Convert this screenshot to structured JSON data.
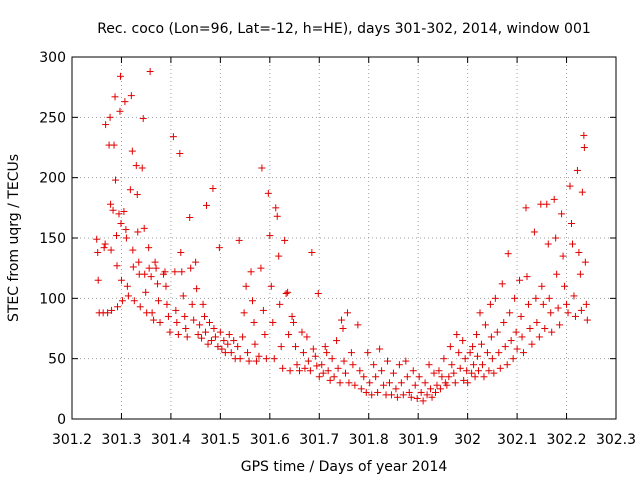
{
  "chart_data": {
    "type": "scatter",
    "title": "Rec. coco (Lon=96, Lat=-12, h=HE), days 301-302, 2014, window 001",
    "xlabel": "GPS time / Days of year 2014",
    "ylabel": "STEC from uqrg / TECUs",
    "xlim": [
      301.2,
      302.3
    ],
    "ylim": [
      0,
      300
    ],
    "grid": true,
    "marker_color": "#e00000",
    "marker": "plus",
    "x_ticks": [
      "301.2",
      "301.3",
      "301.4",
      "301.5",
      "301.6",
      "301.7",
      "301.8",
      "301.9",
      "302",
      "302.1",
      "302.2",
      "302.3"
    ],
    "y_ticks": [
      "0",
      "50",
      "100",
      "150",
      "200",
      "250",
      "300"
    ],
    "points": [
      [
        301.25,
        149
      ],
      [
        301.252,
        138
      ],
      [
        301.253,
        115
      ],
      [
        301.255,
        88
      ],
      [
        301.263,
        88
      ],
      [
        301.265,
        142
      ],
      [
        301.267,
        145
      ],
      [
        301.268,
        244
      ],
      [
        301.272,
        88
      ],
      [
        301.275,
        227
      ],
      [
        301.277,
        250
      ],
      [
        301.278,
        178
      ],
      [
        301.279,
        140
      ],
      [
        301.28,
        90
      ],
      [
        301.283,
        173
      ],
      [
        301.285,
        227
      ],
      [
        301.287,
        267
      ],
      [
        301.288,
        198
      ],
      [
        301.29,
        152
      ],
      [
        301.291,
        127
      ],
      [
        301.292,
        93
      ],
      [
        301.295,
        170
      ],
      [
        301.297,
        255
      ],
      [
        301.298,
        284
      ],
      [
        301.299,
        162
      ],
      [
        301.3,
        115
      ],
      [
        301.302,
        98
      ],
      [
        301.305,
        172
      ],
      [
        301.307,
        263
      ],
      [
        301.309,
        157
      ],
      [
        301.31,
        150
      ],
      [
        301.312,
        110
      ],
      [
        301.314,
        102
      ],
      [
        301.318,
        190
      ],
      [
        301.32,
        268
      ],
      [
        301.322,
        222
      ],
      [
        301.323,
        140
      ],
      [
        301.324,
        126
      ],
      [
        301.326,
        98
      ],
      [
        301.33,
        210
      ],
      [
        301.332,
        186
      ],
      [
        301.333,
        155
      ],
      [
        301.335,
        130
      ],
      [
        301.336,
        120
      ],
      [
        301.338,
        93
      ],
      [
        301.342,
        208
      ],
      [
        301.344,
        249
      ],
      [
        301.346,
        158
      ],
      [
        301.347,
        120
      ],
      [
        301.349,
        105
      ],
      [
        301.351,
        88
      ],
      [
        301.355,
        142
      ],
      [
        301.356,
        125
      ],
      [
        301.358,
        288
      ],
      [
        301.36,
        118
      ],
      [
        301.362,
        88
      ],
      [
        301.365,
        82
      ],
      [
        301.368,
        130
      ],
      [
        301.37,
        125
      ],
      [
        301.373,
        112
      ],
      [
        301.375,
        98
      ],
      [
        301.378,
        80
      ],
      [
        301.385,
        120
      ],
      [
        301.388,
        122
      ],
      [
        301.39,
        110
      ],
      [
        301.392,
        95
      ],
      [
        301.395,
        85
      ],
      [
        301.398,
        72
      ],
      [
        301.405,
        234
      ],
      [
        301.408,
        122
      ],
      [
        301.41,
        90
      ],
      [
        301.412,
        80
      ],
      [
        301.415,
        70
      ],
      [
        301.418,
        220
      ],
      [
        301.42,
        138
      ],
      [
        301.422,
        122
      ],
      [
        301.425,
        102
      ],
      [
        301.428,
        85
      ],
      [
        301.43,
        75
      ],
      [
        301.433,
        68
      ],
      [
        301.438,
        167
      ],
      [
        301.44,
        125
      ],
      [
        301.443,
        95
      ],
      [
        301.446,
        82
      ],
      [
        301.45,
        130
      ],
      [
        301.452,
        108
      ],
      [
        301.455,
        70
      ],
      [
        301.458,
        78
      ],
      [
        301.462,
        67
      ],
      [
        301.465,
        95
      ],
      [
        301.468,
        85
      ],
      [
        301.47,
        72
      ],
      [
        301.472,
        177
      ],
      [
        301.475,
        62
      ],
      [
        301.478,
        80
      ],
      [
        301.482,
        65
      ],
      [
        301.485,
        191
      ],
      [
        301.487,
        75
      ],
      [
        301.49,
        68
      ],
      [
        301.495,
        60
      ],
      [
        301.498,
        142
      ],
      [
        301.5,
        72
      ],
      [
        301.503,
        58
      ],
      [
        301.507,
        65
      ],
      [
        301.51,
        55
      ],
      [
        301.515,
        62
      ],
      [
        301.518,
        70
      ],
      [
        301.522,
        55
      ],
      [
        301.527,
        65
      ],
      [
        301.53,
        50
      ],
      [
        301.535,
        60
      ],
      [
        301.538,
        148
      ],
      [
        301.54,
        50
      ],
      [
        301.545,
        68
      ],
      [
        301.548,
        88
      ],
      [
        301.552,
        110
      ],
      [
        301.555,
        55
      ],
      [
        301.558,
        48
      ],
      [
        301.562,
        122
      ],
      [
        301.565,
        98
      ],
      [
        301.568,
        80
      ],
      [
        301.57,
        62
      ],
      [
        301.573,
        48
      ],
      [
        301.578,
        52
      ],
      [
        301.582,
        125
      ],
      [
        301.584,
        208
      ],
      [
        301.587,
        90
      ],
      [
        301.59,
        70
      ],
      [
        301.593,
        50
      ],
      [
        301.597,
        187
      ],
      [
        301.6,
        152
      ],
      [
        301.603,
        110
      ],
      [
        301.606,
        80
      ],
      [
        301.609,
        50
      ],
      [
        301.612,
        175
      ],
      [
        301.615,
        168
      ],
      [
        301.618,
        135
      ],
      [
        301.62,
        95
      ],
      [
        301.623,
        60
      ],
      [
        301.626,
        42
      ],
      [
        301.63,
        148
      ],
      [
        301.633,
        104
      ],
      [
        301.636,
        105
      ],
      [
        301.638,
        70
      ],
      [
        301.641,
        40
      ],
      [
        301.645,
        85
      ],
      [
        301.648,
        80
      ],
      [
        301.652,
        60
      ],
      [
        301.655,
        45
      ],
      [
        301.66,
        40
      ],
      [
        301.665,
        72
      ],
      [
        301.668,
        55
      ],
      [
        301.671,
        42
      ],
      [
        301.675,
        68
      ],
      [
        301.678,
        48
      ],
      [
        301.682,
        40
      ],
      [
        301.685,
        138
      ],
      [
        301.688,
        58
      ],
      [
        301.692,
        52
      ],
      [
        301.695,
        44
      ],
      [
        301.698,
        104
      ],
      [
        301.7,
        35
      ],
      [
        301.705,
        45
      ],
      [
        301.708,
        38
      ],
      [
        301.712,
        60
      ],
      [
        301.715,
        55
      ],
      [
        301.718,
        40
      ],
      [
        301.722,
        32
      ],
      [
        301.726,
        50
      ],
      [
        301.73,
        35
      ],
      [
        301.735,
        65
      ],
      [
        301.738,
        42
      ],
      [
        301.742,
        30
      ],
      [
        301.745,
        82
      ],
      [
        301.748,
        75
      ],
      [
        301.75,
        48
      ],
      [
        301.753,
        38
      ],
      [
        301.757,
        88
      ],
      [
        301.76,
        30
      ],
      [
        301.765,
        55
      ],
      [
        301.768,
        45
      ],
      [
        301.772,
        28
      ],
      [
        301.778,
        78
      ],
      [
        301.782,
        40
      ],
      [
        301.785,
        25
      ],
      [
        301.79,
        35
      ],
      [
        301.795,
        22
      ],
      [
        301.798,
        55
      ],
      [
        301.802,
        30
      ],
      [
        301.806,
        20
      ],
      [
        301.81,
        45
      ],
      [
        301.814,
        35
      ],
      [
        301.818,
        22
      ],
      [
        301.822,
        58
      ],
      [
        301.826,
        40
      ],
      [
        301.83,
        28
      ],
      [
        301.835,
        20
      ],
      [
        301.838,
        48
      ],
      [
        301.842,
        30
      ],
      [
        301.846,
        20
      ],
      [
        301.85,
        38
      ],
      [
        301.855,
        25
      ],
      [
        301.858,
        18
      ],
      [
        301.862,
        45
      ],
      [
        301.866,
        30
      ],
      [
        301.87,
        20
      ],
      [
        301.875,
        48
      ],
      [
        301.878,
        35
      ],
      [
        301.882,
        22
      ],
      [
        301.886,
        18
      ],
      [
        301.89,
        40
      ],
      [
        301.894,
        28
      ],
      [
        301.898,
        17
      ],
      [
        301.902,
        35
      ],
      [
        301.906,
        22
      ],
      [
        301.91,
        15
      ],
      [
        301.914,
        30
      ],
      [
        301.918,
        20
      ],
      [
        301.922,
        45
      ],
      [
        301.925,
        25
      ],
      [
        301.928,
        18
      ],
      [
        301.932,
        38
      ],
      [
        301.935,
        22
      ],
      [
        301.938,
        28
      ],
      [
        301.942,
        40
      ],
      [
        301.945,
        25
      ],
      [
        301.948,
        35
      ],
      [
        301.952,
        50
      ],
      [
        301.955,
        30
      ],
      [
        301.958,
        28
      ],
      [
        301.962,
        35
      ],
      [
        301.965,
        60
      ],
      [
        301.968,
        45
      ],
      [
        301.972,
        38
      ],
      [
        301.975,
        30
      ],
      [
        301.978,
        70
      ],
      [
        301.982,
        55
      ],
      [
        301.985,
        42
      ],
      [
        301.99,
        65
      ],
      [
        301.992,
        32
      ],
      [
        301.995,
        50
      ],
      [
        301.998,
        40
      ],
      [
        302.0,
        30
      ],
      [
        302.005,
        55
      ],
      [
        302.008,
        38
      ],
      [
        302.01,
        60
      ],
      [
        302.012,
        45
      ],
      [
        302.015,
        35
      ],
      [
        302.018,
        70
      ],
      [
        302.02,
        52
      ],
      [
        302.022,
        40
      ],
      [
        302.025,
        88
      ],
      [
        302.028,
        62
      ],
      [
        302.03,
        45
      ],
      [
        302.033,
        35
      ],
      [
        302.036,
        78
      ],
      [
        302.04,
        55
      ],
      [
        302.043,
        40
      ],
      [
        302.046,
        95
      ],
      [
        302.048,
        68
      ],
      [
        302.05,
        50
      ],
      [
        302.053,
        38
      ],
      [
        302.056,
        100
      ],
      [
        302.06,
        72
      ],
      [
        302.063,
        55
      ],
      [
        302.066,
        42
      ],
      [
        302.07,
        112
      ],
      [
        302.073,
        80
      ],
      [
        302.076,
        60
      ],
      [
        302.08,
        45
      ],
      [
        302.082,
        137
      ],
      [
        302.085,
        88
      ],
      [
        302.088,
        65
      ],
      [
        302.092,
        50
      ],
      [
        302.095,
        100
      ],
      [
        302.098,
        72
      ],
      [
        302.1,
        58
      ],
      [
        302.105,
        115
      ],
      [
        302.108,
        85
      ],
      [
        302.11,
        68
      ],
      [
        302.113,
        55
      ],
      [
        302.118,
        175
      ],
      [
        302.12,
        118
      ],
      [
        302.123,
        95
      ],
      [
        302.126,
        75
      ],
      [
        302.13,
        62
      ],
      [
        302.135,
        155
      ],
      [
        302.138,
        100
      ],
      [
        302.14,
        80
      ],
      [
        302.145,
        68
      ],
      [
        302.148,
        178
      ],
      [
        302.15,
        110
      ],
      [
        302.153,
        95
      ],
      [
        302.156,
        75
      ],
      [
        302.16,
        178
      ],
      [
        302.163,
        145
      ],
      [
        302.165,
        100
      ],
      [
        302.168,
        88
      ],
      [
        302.17,
        72
      ],
      [
        302.175,
        182
      ],
      [
        302.178,
        150
      ],
      [
        302.18,
        120
      ],
      [
        302.183,
        92
      ],
      [
        302.186,
        78
      ],
      [
        302.19,
        170
      ],
      [
        302.193,
        135
      ],
      [
        302.196,
        110
      ],
      [
        302.2,
        95
      ],
      [
        302.203,
        88
      ],
      [
        302.207,
        193
      ],
      [
        302.21,
        162
      ],
      [
        302.212,
        145
      ],
      [
        302.215,
        102
      ],
      [
        302.218,
        85
      ],
      [
        302.222,
        206
      ],
      [
        302.225,
        138
      ],
      [
        302.228,
        120
      ],
      [
        302.23,
        90
      ],
      [
        302.232,
        188
      ],
      [
        302.235,
        235
      ],
      [
        302.236,
        225
      ],
      [
        302.238,
        130
      ],
      [
        302.24,
        95
      ],
      [
        302.242,
        82
      ]
    ]
  }
}
